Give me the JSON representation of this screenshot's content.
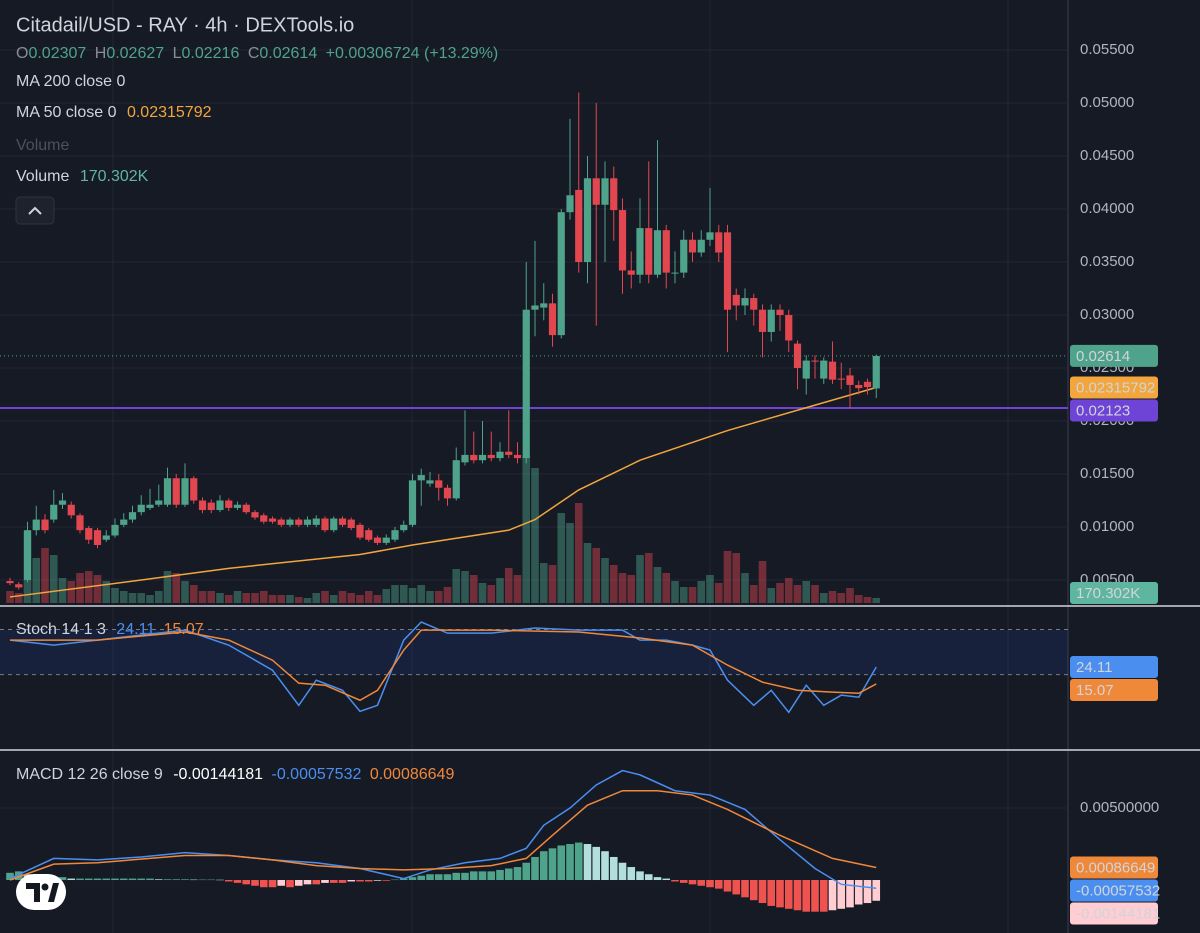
{
  "chart_data": [
    {
      "type": "candlestick",
      "title": "Citadail/USD - RAY · 4h · DEXTools.io",
      "ohlc_labels": [
        "O",
        "H",
        "L",
        "C"
      ],
      "change_label": "+0.00306724 (+13.29%)",
      "ma200_label": "MA 200 close 0",
      "muted_legend": "Volume",
      "up_color": "#4fa38b",
      "down_color": "#e2474f",
      "open": [
        0.0049,
        0.0046,
        0.005,
        0.0097,
        0.0107,
        0.0107,
        0.0121,
        0.0121,
        0.0111,
        0.0099,
        0.0097,
        0.0088,
        0.0092,
        0.0102,
        0.0107,
        0.0114,
        0.0118,
        0.0121,
        0.0121,
        0.0146,
        0.0121,
        0.0146,
        0.0125,
        0.0123,
        0.0116,
        0.0125,
        0.0118,
        0.0121,
        0.0114,
        0.0111,
        0.0108,
        0.0107,
        0.0102,
        0.0107,
        0.0102,
        0.0102,
        0.0108,
        0.0097,
        0.0108,
        0.0107,
        0.0102,
        0.0097,
        0.009,
        0.0085,
        0.0088,
        0.0097,
        0.0102,
        0.0144,
        0.0141,
        0.0144,
        0.0137,
        0.0127,
        0.0161,
        0.0168,
        0.0163,
        0.0168,
        0.0165,
        0.0171,
        0.0168,
        0.0165,
        0.0305,
        0.0307,
        0.0311,
        0.0281,
        0.0397,
        0.0418,
        0.035,
        0.0429,
        0.0404,
        0.0429,
        0.0399,
        0.0342,
        0.0338,
        0.0382,
        0.0338,
        0.038,
        0.034,
        0.034,
        0.0371,
        0.0359,
        0.0371,
        0.0378,
        0.0378,
        0.0319,
        0.0309,
        0.0316,
        0.0305,
        0.0284,
        0.0305,
        0.03,
        0.0273,
        0.024,
        0.0257,
        0.024,
        0.0256,
        0.024,
        0.0243,
        0.0234,
        0.0237,
        0.02307
      ],
      "high": [
        0.0052,
        0.0048,
        0.0105,
        0.012,
        0.0112,
        0.0135,
        0.0132,
        0.0124,
        0.0113,
        0.0101,
        0.0099,
        0.0097,
        0.0108,
        0.0113,
        0.012,
        0.013,
        0.0136,
        0.014,
        0.0156,
        0.015,
        0.016,
        0.0148,
        0.0128,
        0.0126,
        0.013,
        0.0127,
        0.0124,
        0.0123,
        0.0116,
        0.0113,
        0.011,
        0.0109,
        0.0109,
        0.0109,
        0.011,
        0.0111,
        0.011,
        0.011,
        0.011,
        0.0109,
        0.0104,
        0.0099,
        0.0092,
        0.0093,
        0.01,
        0.0106,
        0.015,
        0.0155,
        0.0152,
        0.015,
        0.014,
        0.0175,
        0.021,
        0.019,
        0.02,
        0.019,
        0.018,
        0.021,
        0.018,
        0.035,
        0.037,
        0.033,
        0.032,
        0.04,
        0.0485,
        0.051,
        0.045,
        0.05,
        0.0445,
        0.044,
        0.041,
        0.036,
        0.041,
        0.0445,
        0.0465,
        0.0385,
        0.036,
        0.038,
        0.0378,
        0.038,
        0.042,
        0.0385,
        0.0385,
        0.0325,
        0.0325,
        0.032,
        0.031,
        0.031,
        0.031,
        0.0305,
        0.0276,
        0.0262,
        0.0262,
        0.026,
        0.0275,
        0.0255,
        0.025,
        0.0238,
        0.024,
        0.02627
      ],
      "low": [
        0.0045,
        0.0041,
        0.0048,
        0.0092,
        0.0094,
        0.0104,
        0.0117,
        0.0108,
        0.0094,
        0.0084,
        0.008,
        0.0086,
        0.009,
        0.01,
        0.0104,
        0.0111,
        0.0116,
        0.0119,
        0.0119,
        0.0118,
        0.0119,
        0.0122,
        0.0113,
        0.0113,
        0.0114,
        0.0115,
        0.0116,
        0.0112,
        0.0107,
        0.0103,
        0.0103,
        0.01,
        0.01,
        0.01,
        0.01,
        0.01,
        0.0095,
        0.0095,
        0.01,
        0.0097,
        0.0088,
        0.0086,
        0.0083,
        0.0083,
        0.0086,
        0.0095,
        0.01,
        0.012,
        0.0138,
        0.0125,
        0.012,
        0.0125,
        0.0158,
        0.016,
        0.016,
        0.0162,
        0.0162,
        0.0165,
        0.016,
        0.016,
        0.028,
        0.0295,
        0.027,
        0.0278,
        0.039,
        0.034,
        0.033,
        0.029,
        0.035,
        0.037,
        0.032,
        0.0325,
        0.033,
        0.033,
        0.0335,
        0.0325,
        0.033,
        0.0335,
        0.035,
        0.0355,
        0.0365,
        0.035,
        0.0265,
        0.0295,
        0.03,
        0.029,
        0.026,
        0.0275,
        0.0285,
        0.0265,
        0.023,
        0.0225,
        0.024,
        0.0235,
        0.0235,
        0.023,
        0.0212,
        0.0225,
        0.0225,
        0.02216
      ],
      "close": [
        0.0047,
        0.0043,
        0.0097,
        0.0107,
        0.0097,
        0.0121,
        0.0125,
        0.0111,
        0.0097,
        0.0088,
        0.0083,
        0.0092,
        0.0102,
        0.0107,
        0.0114,
        0.0121,
        0.0121,
        0.0125,
        0.0146,
        0.0121,
        0.0146,
        0.0125,
        0.0116,
        0.0116,
        0.0125,
        0.0118,
        0.0121,
        0.0114,
        0.0109,
        0.0105,
        0.0105,
        0.0102,
        0.0107,
        0.0102,
        0.0107,
        0.0108,
        0.0097,
        0.0108,
        0.0102,
        0.0099,
        0.009,
        0.0088,
        0.0085,
        0.009,
        0.0097,
        0.0102,
        0.0144,
        0.0149,
        0.0144,
        0.0137,
        0.0127,
        0.0163,
        0.0168,
        0.0163,
        0.0168,
        0.0165,
        0.0171,
        0.0168,
        0.0165,
        0.0305,
        0.0309,
        0.0311,
        0.0281,
        0.0397,
        0.0413,
        0.035,
        0.0429,
        0.0404,
        0.0429,
        0.0399,
        0.0342,
        0.0338,
        0.0382,
        0.0338,
        0.038,
        0.034,
        0.034,
        0.0371,
        0.0359,
        0.0371,
        0.0378,
        0.0359,
        0.0305,
        0.0309,
        0.0316,
        0.0305,
        0.0284,
        0.0305,
        0.03,
        0.0276,
        0.025,
        0.0257,
        0.0256,
        0.0257,
        0.0239,
        0.0239,
        0.0234,
        0.0231,
        0.0232,
        0.02614
      ],
      "volume": {
        "name": "Volume",
        "value_label": "170.302K",
        "label_color": "#5fb6a0",
        "values": [
          408000,
          340000,
          2448000,
          1530000,
          1870000,
          1632000,
          850000,
          748000,
          1020000,
          1088000,
          952000,
          748000,
          510000,
          408000,
          340000,
          340000,
          272000,
          408000,
          1088000,
          1020000,
          748000,
          612000,
          408000,
          408000,
          340000,
          272000,
          408000,
          340000,
          340000,
          408000,
          272000,
          272000,
          272000,
          204000,
          170000,
          340000,
          408000,
          272000,
          408000,
          340000,
          272000,
          408000,
          272000,
          476000,
          612000,
          612000,
          510000,
          612000,
          408000,
          408000,
          544000,
          1156000,
          1088000,
          952000,
          680000,
          612000,
          850000,
          1190000,
          952000,
          5032000,
          4590000,
          1360000,
          1292000,
          3060000,
          2720000,
          3400000,
          2040000,
          1870000,
          1530000,
          1292000,
          1020000,
          952000,
          1632000,
          1700000,
          1224000,
          1020000,
          748000,
          544000,
          544000,
          748000,
          952000,
          680000,
          1768000,
          1700000,
          1020000,
          612000,
          1428000,
          510000,
          680000,
          850000,
          612000,
          748000,
          612000,
          340000,
          408000,
          340000,
          510000,
          272000,
          204000,
          170302
        ]
      },
      "series": [
        {
          "name": "MA 50 close 0",
          "color": "#f2a63c",
          "x": [
            0,
            15,
            25,
            40,
            46,
            57,
            60,
            65,
            72,
            82,
            92,
            99
          ],
          "values": [
            0.0034,
            0.005,
            0.0061,
            0.0074,
            0.0083,
            0.0097,
            0.0107,
            0.0135,
            0.0163,
            0.0191,
            0.0215,
            0.02315792
          ]
        }
      ],
      "hline": {
        "value": 0.02123,
        "color": "#6e44d6"
      },
      "ylim": [
        0.00264,
        0.05972
      ],
      "yticks": [
        {
          "value": 0.005,
          "label": "0.00500"
        },
        {
          "value": 0.01,
          "label": "0.01000"
        },
        {
          "value": 0.015,
          "label": "0.01500"
        },
        {
          "value": 0.02,
          "label": "0.02000"
        },
        {
          "value": 0.025,
          "label": "0.02500"
        },
        {
          "value": 0.03,
          "label": "0.03000"
        },
        {
          "value": 0.035,
          "label": "0.03500"
        },
        {
          "value": 0.04,
          "label": "0.04000"
        },
        {
          "value": 0.045,
          "label": "0.04500"
        },
        {
          "value": 0.05,
          "label": "0.05000"
        },
        {
          "value": 0.055,
          "label": "0.05500"
        }
      ],
      "grid": true
    },
    {
      "type": "stochastic",
      "title": "Stoch 14 1 3",
      "series": [
        {
          "color": "#4a8ff0",
          "x": [
            0,
            5,
            10,
            15,
            20,
            25,
            30,
            33,
            35,
            38,
            40,
            42,
            45,
            47,
            50,
            55,
            60,
            65,
            70,
            72,
            75,
            78,
            80,
            82,
            85,
            87,
            89,
            91,
            93,
            95,
            97,
            99
          ],
          "values": [
            38.4,
            35.7,
            38.4,
            41.1,
            43.7,
            35.7,
            22.4,
            3.7,
            17.1,
            11.7,
            0.5,
            3.7,
            38.4,
            48,
            42.1,
            42.1,
            44.8,
            43.7,
            43.7,
            38.4,
            38.4,
            35.7,
            33.1,
            17.1,
            3.7,
            11.7,
            0,
            14.4,
            3.7,
            9.1,
            8,
            24.11
          ]
        },
        {
          "color": "#f0883a",
          "x": [
            0,
            10,
            20,
            25,
            30,
            33,
            36,
            40,
            42,
            45,
            47,
            55,
            65,
            72,
            78,
            82,
            86,
            90,
            94,
            97,
            99
          ],
          "values": [
            38.4,
            38.4,
            42.7,
            38.4,
            27.7,
            15.5,
            14.4,
            6.4,
            11.7,
            33.1,
            43.7,
            43.7,
            42.7,
            39.5,
            35.7,
            25.1,
            16,
            11.7,
            10.7,
            10.1,
            15.07
          ]
        }
      ],
      "bands": [
        20,
        44
      ],
      "ylim": [
        -19,
        56
      ]
    },
    {
      "type": "macd",
      "title": "MACD 12 26 close 9",
      "histogram": [
        0.0005,
        0.0006,
        0.0004,
        0.0003,
        0.0002,
        0.0002,
        0.0002,
        0.0001,
        0.0001,
        0.0001,
        0.0001,
        0.0001,
        0.0001,
        0.0001,
        0.0001,
        0.0001,
        0.0001,
        5e-05,
        5e-05,
        5e-05,
        5e-05,
        3e-05,
        3e-05,
        3e-05,
        2e-05,
        -0.0001,
        -0.0002,
        -0.0003,
        -0.0004,
        -0.0005,
        -0.0005,
        -0.0004,
        -0.0005,
        -0.0004,
        -0.0003,
        -0.0003,
        -0.0002,
        -0.0002,
        -0.0002,
        -0.0001,
        -0.0001,
        -0.0001,
        -5e-05,
        -5e-05,
        3e-05,
        0.0001,
        0.0002,
        0.0003,
        0.0004,
        0.0004,
        0.0004,
        0.0005,
        0.0005,
        0.0006,
        0.0006,
        0.0006,
        0.0007,
        0.0008,
        0.0009,
        0.0012,
        0.0016,
        0.002,
        0.0022,
        0.0024,
        0.0025,
        0.0026,
        0.0025,
        0.0023,
        0.002,
        0.0016,
        0.0012,
        0.0009,
        0.0006,
        0.0004,
        0.0002,
        0.0001,
        -0.0001,
        -0.0002,
        -0.0003,
        -0.0004,
        -0.0005,
        -0.0006,
        -0.0008,
        -0.001,
        -0.0012,
        -0.0014,
        -0.0016,
        -0.0018,
        -0.0019,
        -0.002,
        -0.0021,
        -0.0022,
        -0.0022,
        -0.0022,
        -0.0021,
        -0.002,
        -0.0019,
        -0.0017,
        -0.0016,
        -0.00144181
      ],
      "histogram_colors": [
        "#4fa38b",
        "#b2dfdb",
        "#ef5350",
        "#ffcdd2"
      ],
      "series": [
        {
          "color": "#4a8ff0",
          "x": [
            0,
            5,
            10,
            15,
            20,
            25,
            30,
            35,
            40,
            45,
            48,
            52,
            56,
            59,
            61,
            64,
            67,
            70,
            72,
            76,
            80,
            84,
            88,
            92,
            95,
            99
          ],
          "values": [
            0.0001,
            0.0015,
            0.0014,
            0.0016,
            0.0019,
            0.0017,
            0.0014,
            0.0012,
            0.0008,
            0.0001,
            0.0007,
            0.0012,
            0.0015,
            0.0022,
            0.0038,
            0.005,
            0.0066,
            0.0076,
            0.0073,
            0.0062,
            0.0059,
            0.0049,
            0.0028,
            0.0008,
            -0.0003,
            -0.00057532
          ]
        },
        {
          "color": "#f0883a",
          "x": [
            0,
            5,
            10,
            20,
            25,
            30,
            35,
            40,
            45,
            50,
            55,
            59,
            62,
            66,
            70,
            74,
            78,
            82,
            88,
            94,
            99
          ],
          "values": [
            0,
            0.0011,
            0.0012,
            0.0017,
            0.0017,
            0.0014,
            0.001,
            0.0008,
            0.0007,
            0.0008,
            0.001,
            0.0015,
            0.0031,
            0.0052,
            0.0062,
            0.0062,
            0.0059,
            0.0049,
            0.0031,
            0.0015,
            0.00086649
          ]
        }
      ],
      "ylim": [
        -0.00368,
        0.00889
      ],
      "yticks": [
        {
          "value": 0.005,
          "label": "0.00500000"
        }
      ]
    }
  ]
}
